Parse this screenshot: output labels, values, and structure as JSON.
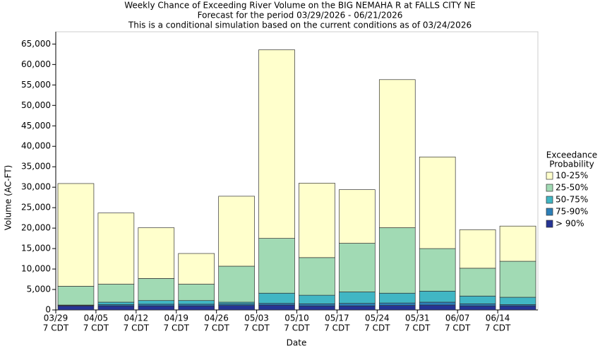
{
  "chart_data": {
    "type": "stacked_bar",
    "title_lines": [
      "Weekly Chance of Exceeding River Volume on the BIG NEMAHA R at FALLS CITY NE",
      "Forecast for the period 03/29/2026 - 06/21/2026",
      "This is a conditional simulation based on the current conditions as of 03/24/2026"
    ],
    "x_label": "Date",
    "y_label": "Volume (AC-FT)",
    "categories": [
      "03/29",
      "04/05",
      "04/12",
      "04/19",
      "04/26",
      "05/03",
      "05/10",
      "05/17",
      "05/24",
      "05/31",
      "06/07",
      "06/14"
    ],
    "category_sublabels": [
      "7 CDT",
      "7 CDT",
      "7 CDT",
      "7 CDT",
      "7 CDT",
      "7 CDT",
      "7 CDT",
      "7 CDT",
      "7 CDT",
      "7 CDT",
      "7 CDT",
      "7 CDT"
    ],
    "legend_title_lines": [
      "Exceedance",
      "Probability"
    ],
    "legend_position": "right",
    "series": [
      {
        "name": "> 90%",
        "color": "#253494",
        "values": [
          1000,
          1000,
          1000,
          1000,
          1100,
          1200,
          1000,
          1000,
          1100,
          1200,
          1000,
          1000
        ]
      },
      {
        "name": "75-90%",
        "color": "#2c7fb8",
        "values": [
          100,
          300,
          400,
          400,
          400,
          400,
          500,
          600,
          600,
          700,
          500,
          300
        ]
      },
      {
        "name": "50-75%",
        "color": "#41b6c4",
        "values": [
          100,
          600,
          900,
          900,
          400,
          2500,
          2100,
          2800,
          2400,
          2700,
          1900,
          1800
        ]
      },
      {
        "name": "25-50%",
        "color": "#a1dab4",
        "values": [
          4600,
          4400,
          5400,
          4000,
          8800,
          13400,
          9200,
          11900,
          16000,
          10400,
          6800,
          8800
        ]
      },
      {
        "name": "10-25%",
        "color": "#ffffcc",
        "values": [
          25100,
          17400,
          12400,
          7500,
          17100,
          46100,
          18200,
          13100,
          36200,
          22400,
          9400,
          8600
        ]
      }
    ],
    "ylim": [
      0,
      68000
    ],
    "yticks": [
      0,
      {
        "value": 5000,
        "label": "5,000"
      },
      {
        "value": 10000,
        "label": "10,000"
      },
      {
        "value": 15000,
        "label": "15,000"
      },
      {
        "value": 20000,
        "label": "20,000"
      },
      {
        "value": 25000,
        "label": "25,000"
      },
      {
        "value": 30000,
        "label": "30,000"
      },
      {
        "value": 35000,
        "label": "35,000"
      },
      {
        "value": 40000,
        "label": "40,000"
      },
      {
        "value": 45000,
        "label": "45,000"
      },
      {
        "value": 50000,
        "label": "50,000"
      },
      {
        "value": 55000,
        "label": "55,000"
      },
      {
        "value": 60000,
        "label": "60,000"
      },
      {
        "value": 65000,
        "label": "65,000"
      }
    ],
    "grid": false
  }
}
